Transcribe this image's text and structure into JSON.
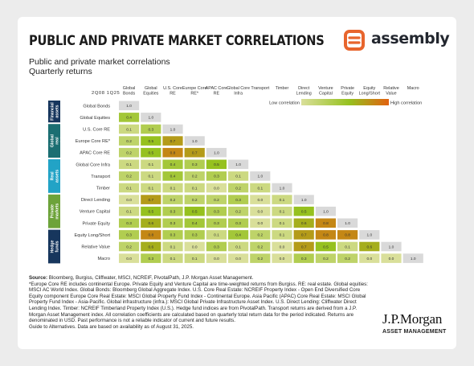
{
  "header": {
    "title": "PUBLIC AND PRIVATE MARKET CORRELATIONS",
    "subtitle_line1": "Public and private market correlations",
    "subtitle_line2": "Quarterly returns"
  },
  "logo": {
    "text": "assembly",
    "icon": "assembly-logo-icon",
    "color": "#e8652d"
  },
  "chart_data": {
    "type": "heatmap",
    "period_label": "2Q08 1Q25",
    "legend": {
      "low": "Low correlation",
      "high": "High correlation"
    },
    "columns": [
      "Global Bonds",
      "Global Equities",
      "U.S. Core RE",
      "Europe Core RE*",
      "APAC Core RE",
      "Global Core Infra",
      "Transport",
      "Timber",
      "Direct Lending",
      "Venture Capital",
      "Private Equity",
      "Equity Long/Short",
      "Relative Value",
      "Macro"
    ],
    "rows": [
      "Global Bonds",
      "Global Equities",
      "U.S. Core RE",
      "Europe Core RE*",
      "APAC Core RE",
      "Global Core Infra",
      "Transport",
      "Timber",
      "Direct Lending",
      "Venture Capital",
      "Private Equity",
      "Equity Long/Short",
      "Relative Value",
      "Macro"
    ],
    "groups": [
      {
        "label": "Financial assets",
        "rows": [
          0,
          1
        ],
        "color": "#17365d"
      },
      {
        "label": "Global real estate",
        "rows": [
          2,
          3,
          4
        ],
        "color": "#1b6e72"
      },
      {
        "label": "Real assets",
        "rows": [
          5,
          6,
          7
        ],
        "color": "#22a3c6"
      },
      {
        "label": "Private markets",
        "rows": [
          8,
          9,
          10
        ],
        "color": "#6da33a"
      },
      {
        "label": "Hedge funds",
        "rows": [
          11,
          12,
          13
        ],
        "color": "#17365d"
      }
    ],
    "values": [
      [
        "1.0"
      ],
      [
        "0.4",
        "1.0"
      ],
      [
        "0.1",
        "0.3",
        "1.0"
      ],
      [
        "0.2",
        "0.5",
        "0.7",
        "1.0"
      ],
      [
        "0.2",
        "0.5",
        "0.8",
        "0.7",
        "1.0"
      ],
      [
        "0.1",
        "0.1",
        "0.4",
        "0.3",
        "0.5",
        "1.0"
      ],
      [
        "0.2",
        "0.1",
        "0.4",
        "0.2",
        "0.3",
        "0.1",
        "1.0"
      ],
      [
        "0.1",
        "0.1",
        "0.1",
        "0.1",
        "0.0",
        "0.2",
        "0.1",
        "1.0"
      ],
      [
        "0.0",
        "0.7",
        "0.2",
        "0.2",
        "0.2",
        "0.3",
        "0.0",
        "0.1",
        "1.0"
      ],
      [
        "0.1",
        "0.5",
        "0.3",
        "0.5",
        "0.3",
        "0.2",
        "0.0",
        "0.1",
        "0.5",
        "1.0"
      ],
      [
        "0.3",
        "0.6",
        "0.3",
        "0.4",
        "0.3",
        "0.3",
        "0.0",
        "0.1",
        "0.6",
        "0.8",
        "1.0"
      ],
      [
        "0.3",
        "0.8",
        "0.3",
        "0.3",
        "0.1",
        "0.4",
        "0.2",
        "0.1",
        "0.7",
        "0.8",
        "0.8",
        "1.0"
      ],
      [
        "0.2",
        "0.6",
        "0.1",
        "0.0",
        "0.3",
        "0.1",
        "0.2",
        "0.0",
        "0.7",
        "0.5",
        "0.1",
        "0.6",
        "1.0"
      ],
      [
        "0.0",
        "0.3",
        "0.1",
        "0.1",
        "0.0",
        "0.0",
        "0.2",
        "0.0",
        "0.3",
        "0.2",
        "0.2",
        "0.0",
        "0.0",
        "1.0"
      ]
    ],
    "colors": {
      "low": "#d9df9a",
      "mid": "#96c11f",
      "high": "#e2610f",
      "diagonal": "#d9d9d9"
    }
  },
  "source": {
    "label": "Source:",
    "text": " Bloomberg, Burgiss, Cliffwater, MSCI, NCREIF, PivotalPath, J.P. Morgan Asset Management.",
    "notes": "*Europe Core RE includes continental Europe. Private Equity and Venture Capital are time-weighted returns from Burgiss. RE: real estate. Global equities: MSCI AC World Index. Global Bonds: Bloomberg Global Aggregate Index. U.S. Core Real Estate: NCREIF Property Index - Open End Diversified Core Equity component Europe Core Real Estate: MSCI Global Property Fund Index - Continental Europe. Asia Pacific (APAC) Core Real Estate: MSCI Global Property Fund Index - Asia-Pacific. Global infrastructure (infra.): MSCI Global Private Infrastructure Asset Index. U.S. Direct Lending: Cliffwater Direct Lending Index. Timber: NCREIF Timberland Property Index (U.S.). Hedge fund indices are from PivotalPath. Transport returns are derived from a J.P. Morgan Asset Management index. All correlation coefficients are calculated based on quarterly total return data for the period indicated. Returns are denominated in USD. Past performance is not a reliable indicator of current and future results.",
    "guide": "Guide to Alternatives. Data are based on availability as of August 31, 2025."
  },
  "brand": {
    "name": "J.P.Morgan",
    "sub": "ASSET MANAGEMENT"
  }
}
